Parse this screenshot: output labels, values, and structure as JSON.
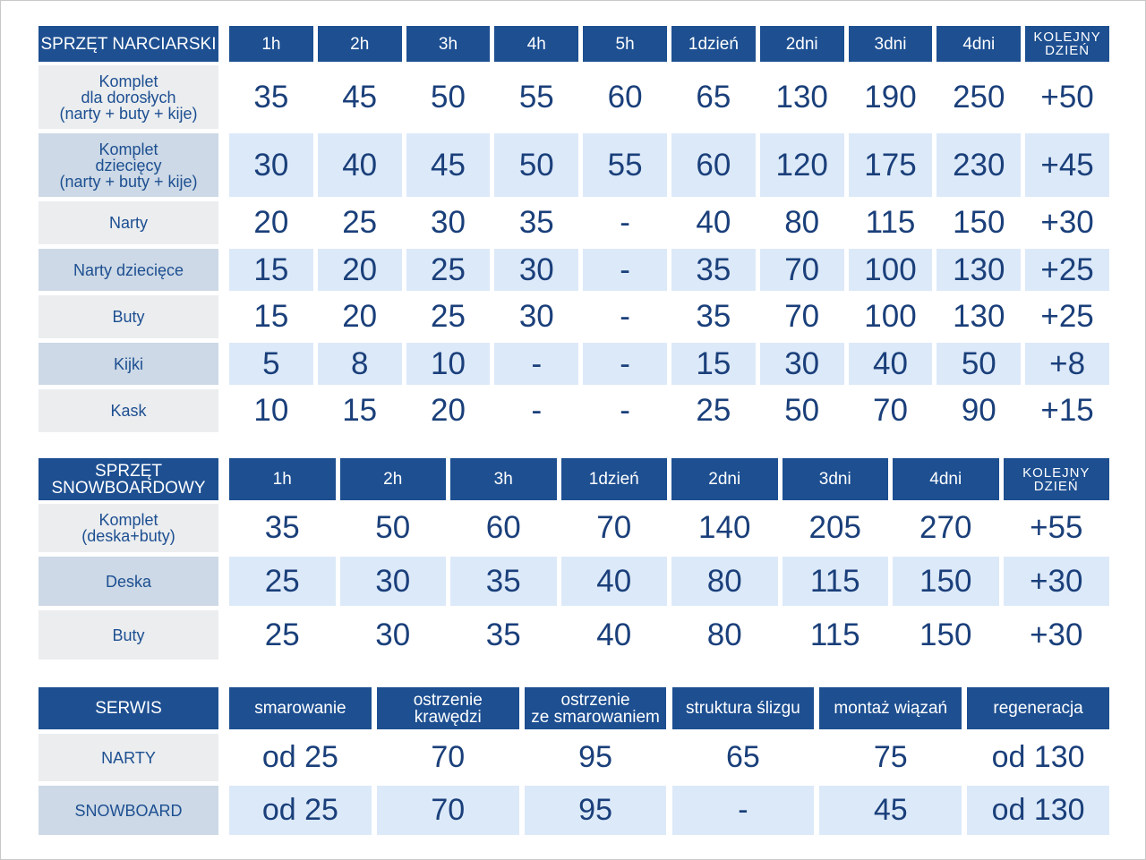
{
  "ski": {
    "header": "SPRZĘT NARCIARSKI",
    "columns": [
      "1h",
      "2h",
      "3h",
      "4h",
      "5h",
      "1dzień",
      "2dni",
      "3dni",
      "4dni",
      "KOLEJNY\nDZIEŃ"
    ],
    "rows": [
      {
        "label": "Komplet\ndla dorosłych\n(narty + buty + kije)",
        "cells": [
          "35",
          "45",
          "50",
          "55",
          "60",
          "65",
          "130",
          "190",
          "250",
          "+50"
        ]
      },
      {
        "label": "Komplet\ndziecięcy\n(narty + buty + kije)",
        "cells": [
          "30",
          "40",
          "45",
          "50",
          "55",
          "60",
          "120",
          "175",
          "230",
          "+45"
        ]
      },
      {
        "label": "Narty",
        "cells": [
          "20",
          "25",
          "30",
          "35",
          "-",
          "40",
          "80",
          "115",
          "150",
          "+30"
        ]
      },
      {
        "label": "Narty dziecięce",
        "cells": [
          "15",
          "20",
          "25",
          "30",
          "-",
          "35",
          "70",
          "100",
          "130",
          "+25"
        ]
      },
      {
        "label": "Buty",
        "cells": [
          "15",
          "20",
          "25",
          "30",
          "-",
          "35",
          "70",
          "100",
          "130",
          "+25"
        ]
      },
      {
        "label": "Kijki",
        "cells": [
          "5",
          "8",
          "10",
          "-",
          "-",
          "15",
          "30",
          "40",
          "50",
          "+8"
        ]
      },
      {
        "label": "Kask",
        "cells": [
          "10",
          "15",
          "20",
          "-",
          "-",
          "25",
          "50",
          "70",
          "90",
          "+15"
        ]
      }
    ]
  },
  "snowboard": {
    "header": "SPRZĘT SNOWBOARDOWY",
    "columns": [
      "1h",
      "2h",
      "3h",
      "1dzień",
      "2dni",
      "3dni",
      "4dni",
      "KOLEJNY\nDZIEŃ"
    ],
    "rows": [
      {
        "label": "Komplet\n(deska+buty)",
        "cells": [
          "35",
          "50",
          "60",
          "70",
          "140",
          "205",
          "270",
          "+55"
        ]
      },
      {
        "label": "Deska",
        "cells": [
          "25",
          "30",
          "35",
          "40",
          "80",
          "115",
          "150",
          "+30"
        ]
      },
      {
        "label": "Buty",
        "cells": [
          "25",
          "30",
          "35",
          "40",
          "80",
          "115",
          "150",
          "+30"
        ]
      }
    ]
  },
  "service": {
    "header": "SERWIS",
    "columns": [
      "smarowanie",
      "ostrzenie\nkrawędzi",
      "ostrzenie\nze smarowaniem",
      "struktura ślizgu",
      "montaż wiązań",
      "regeneracja"
    ],
    "rows": [
      {
        "label": "NARTY",
        "cells": [
          "od 25",
          "70",
          "95",
          "65",
          "75",
          "od 130"
        ]
      },
      {
        "label": "SNOWBOARD",
        "cells": [
          "od 25",
          "70",
          "95",
          "-",
          "45",
          "od 130"
        ]
      }
    ]
  }
}
